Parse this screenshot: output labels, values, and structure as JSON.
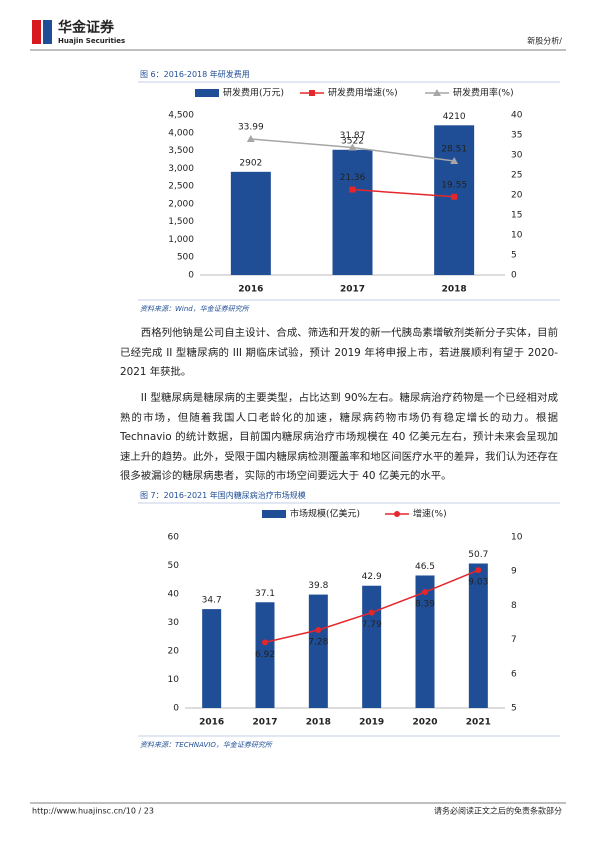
{
  "header": {
    "logo_cn": "华金证券",
    "logo_en": "Huajin Securities",
    "section": "新股分析/"
  },
  "chart_data": [
    {
      "type": "bar",
      "caption": "图 6：2016-2018 年研发费用",
      "source": "资料来源：Wind，华金证券研究所",
      "categories": [
        "2016",
        "2017",
        "2018"
      ],
      "series": [
        {
          "name": "研发费用(万元)",
          "type": "bar",
          "color": "#1f4e96",
          "values": [
            2902,
            3522,
            4210
          ]
        },
        {
          "name": "研发费用增速(%)",
          "type": "line",
          "axis": "y2",
          "color": "#e5262b",
          "marker": "square",
          "label_position": "above",
          "values": [
            null,
            21.36,
            19.55
          ]
        },
        {
          "name": "研发费用率(%)",
          "type": "line",
          "axis": "y2",
          "color": "#a6a6a6",
          "marker": "triangle",
          "label_position": "above",
          "values": [
            33.99,
            31.87,
            28.51
          ]
        }
      ],
      "ylim": [
        0,
        4500
      ],
      "yticks": [
        0,
        500,
        {
          "value": 1000,
          "label": "1,000"
        },
        {
          "value": 1500,
          "label": "1,500"
        },
        {
          "value": 2000,
          "label": "2,000"
        },
        {
          "value": 2500,
          "label": "2,500"
        },
        {
          "value": 3000,
          "label": "3,000"
        },
        {
          "value": 3500,
          "label": "3,500"
        },
        {
          "value": 4000,
          "label": "4,000"
        },
        {
          "value": 4500,
          "label": "4,500"
        }
      ],
      "y2lim": [
        0,
        40
      ],
      "y2ticks": [
        0,
        5,
        10,
        15,
        20,
        25,
        30,
        35,
        40
      ]
    },
    {
      "type": "bar",
      "caption": "图 7：2016-2021 年国内糖尿病治疗市场规模",
      "source": "资料来源：TECHNAVIO，华金证券研究所",
      "categories": [
        "2016",
        "2017",
        "2018",
        "2019",
        "2020",
        "2021"
      ],
      "series": [
        {
          "name": "市场规模(亿美元)",
          "type": "bar",
          "color": "#1f4e96",
          "values": [
            34.7,
            37.1,
            39.8,
            42.9,
            46.5,
            50.7
          ]
        },
        {
          "name": "增速(%)",
          "type": "line",
          "axis": "y2",
          "color": "#e5262b",
          "marker": "circle",
          "label_position": "below",
          "values": [
            null,
            6.92,
            7.28,
            7.79,
            8.39,
            9.03
          ]
        }
      ],
      "ylim": [
        0,
        60
      ],
      "yticks": [
        0,
        10,
        20,
        30,
        40,
        50,
        60
      ],
      "y2lim": [
        5,
        10
      ],
      "y2ticks": [
        5,
        6,
        7,
        8,
        9,
        10
      ]
    }
  ],
  "paragraphs": [
    "西格列他钠是公司自主设计、合成、筛选和开发的新一代胰岛素增敏剂类新分子实体，目前已经完成 II 型糖尿病的 III 期临床试验，预计 2019 年将申报上市，若进展顺利有望于 2020-2021 年获批。",
    "II 型糖尿病是糖尿病的主要类型，占比达到 90%左右。糖尿病治疗药物是一个已经相对成熟的市场，但随着我国人口老龄化的加速，糖尿病药物市场仍有稳定增长的动力。根据 Technavio 的统计数据，目前国内糖尿病治疗市场规模在 40 亿美元左右，预计未来会呈现加速上升的趋势。此外，受限于国内糖尿病检测覆盖率和地区间医疗水平的差异，我们认为还存在很多被漏诊的糖尿病患者，实际的市场空间要远大于 40 亿美元的水平。"
  ],
  "footer": {
    "url": "http://www.huajinsc.cn/10 / 23",
    "disclaimer": "请务必阅读正文之后的免责条款部分"
  }
}
